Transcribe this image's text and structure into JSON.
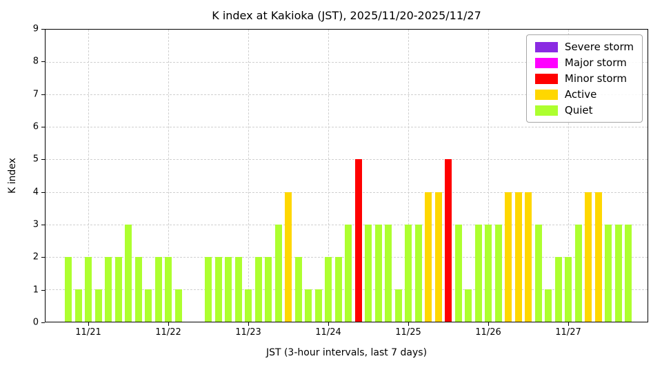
{
  "chart_data": {
    "type": "bar",
    "title": "K index at Kakioka (JST), 2025/11/20-2025/11/27",
    "xlabel": "JST (3-hour intervals, last 7 days)",
    "ylabel": "K index",
    "ylim": [
      0,
      9
    ],
    "y_ticks": [
      0,
      1,
      2,
      3,
      4,
      5,
      6,
      7,
      8,
      9
    ],
    "grid": true,
    "interval_hours": 3,
    "x_start": "2025/11/20 18:00 JST",
    "values": [
      2,
      1,
      2,
      1,
      2,
      2,
      3,
      2,
      1,
      2,
      2,
      1,
      0,
      0,
      2,
      2,
      2,
      2,
      1,
      2,
      2,
      3,
      4,
      2,
      1,
      1,
      2,
      2,
      3,
      5,
      3,
      3,
      3,
      1,
      3,
      3,
      4,
      4,
      5,
      3,
      1,
      3,
      3,
      3,
      4,
      4,
      4,
      3,
      1,
      2,
      2,
      3,
      4,
      4,
      3,
      3,
      3
    ],
    "x_ticks": [
      {
        "slot": 2,
        "label": "11/21"
      },
      {
        "slot": 10,
        "label": "11/22"
      },
      {
        "slot": 18,
        "label": "11/23"
      },
      {
        "slot": 26,
        "label": "11/24"
      },
      {
        "slot": 34,
        "label": "11/25"
      },
      {
        "slot": 42,
        "label": "11/26"
      },
      {
        "slot": 50,
        "label": "11/27"
      }
    ],
    "colors": {
      "severe": "#8A2BE2",
      "major": "#FF00FF",
      "minor": "#FF0000",
      "active": "#FFD700",
      "quiet": "#ADFF2F"
    },
    "legend_position": "upper right",
    "legend": [
      {
        "label": "Severe storm",
        "color_key": "severe"
      },
      {
        "label": "Major storm",
        "color_key": "major"
      },
      {
        "label": "Minor storm",
        "color_key": "minor"
      },
      {
        "label": "Active",
        "color_key": "active"
      },
      {
        "label": "Quiet",
        "color_key": "quiet"
      }
    ]
  }
}
